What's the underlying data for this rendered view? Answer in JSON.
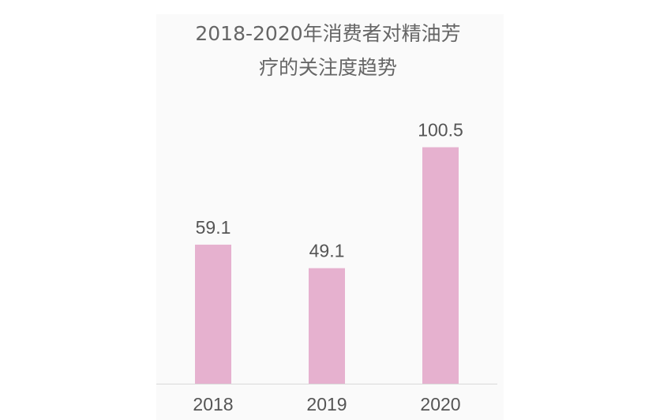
{
  "chart_data": {
    "type": "bar",
    "title_lines": [
      "2018-2020年消费者对精油芳",
      "疗的关注度趋势"
    ],
    "categories": [
      "2018",
      "2019",
      "2020"
    ],
    "values": [
      59.1,
      49.1,
      100.5
    ],
    "value_labels": [
      "59.1",
      "49.1",
      "100.5"
    ],
    "xlabel": "",
    "ylabel": "",
    "ylim": [
      0,
      110
    ],
    "grid": false,
    "legend": "none",
    "bar_color": "#e6b1cf",
    "axis_color": "#d9d9d9",
    "text_color": "#555555"
  }
}
